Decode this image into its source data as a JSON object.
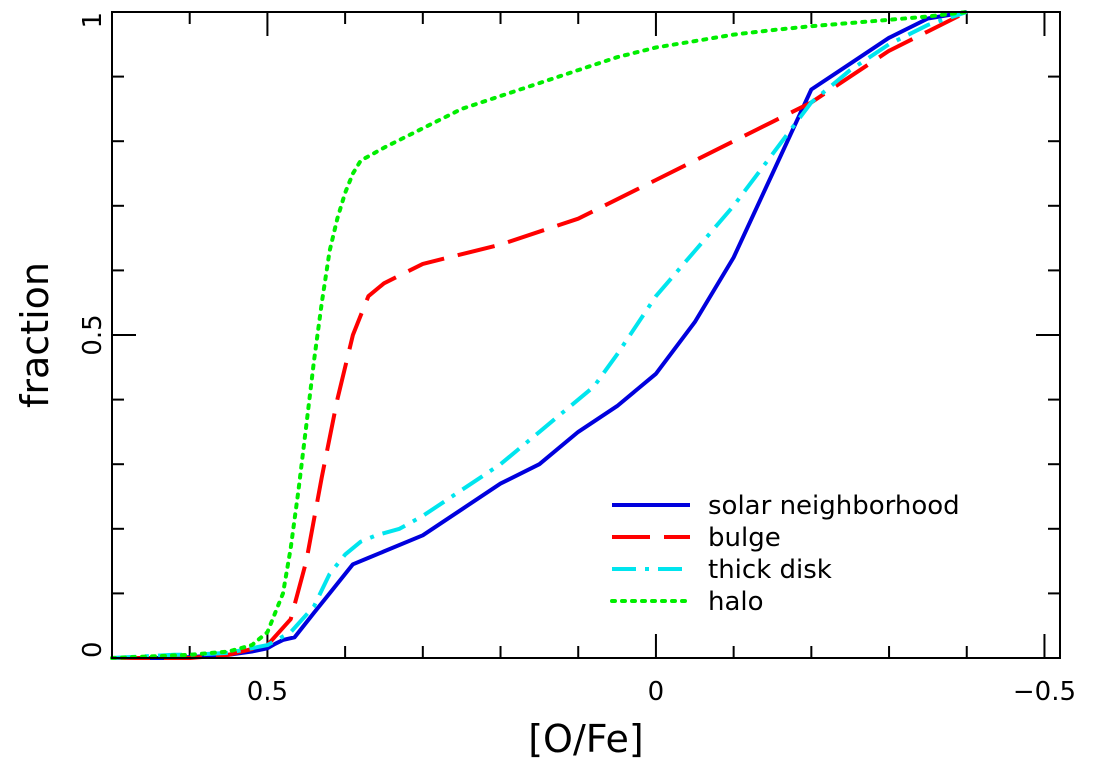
{
  "chart_data": {
    "type": "line",
    "xlabel": "[O/Fe]",
    "ylabel": "fraction",
    "xlim": [
      0.7,
      -0.52
    ],
    "ylim": [
      0,
      1
    ],
    "x_reversed": true,
    "grid": false,
    "legend_placement": "bottom-right",
    "x_ticks": [
      {
        "value": 0.5,
        "label": "0.5"
      },
      {
        "value": 0,
        "label": "0"
      },
      {
        "value": -0.5,
        "label": "−0.5"
      }
    ],
    "y_ticks": [
      {
        "value": 0,
        "label": "0"
      },
      {
        "value": 0.5,
        "label": "0.5"
      },
      {
        "value": 1,
        "label": "1"
      }
    ],
    "x_minor_step": 0.1,
    "y_minor_step": 0.1,
    "series": [
      {
        "name": "solar neighborhood",
        "color": "#0000dd",
        "dash": "solid",
        "x": [
          0.7,
          0.62,
          0.55,
          0.52,
          0.5,
          0.49,
          0.48,
          0.465,
          0.44,
          0.42,
          0.4,
          0.39,
          0.37,
          0.35,
          0.3,
          0.25,
          0.2,
          0.15,
          0.1,
          0.05,
          0.0,
          -0.05,
          -0.1,
          -0.15,
          -0.2,
          -0.25,
          -0.3,
          -0.35,
          -0.4
        ],
        "y": [
          0.0,
          0.0,
          0.005,
          0.01,
          0.015,
          0.022,
          0.028,
          0.032,
          0.07,
          0.1,
          0.13,
          0.145,
          0.155,
          0.165,
          0.19,
          0.23,
          0.27,
          0.3,
          0.35,
          0.39,
          0.44,
          0.52,
          0.62,
          0.75,
          0.88,
          0.92,
          0.96,
          0.99,
          1.0
        ]
      },
      {
        "name": "bulge",
        "color": "#ff0000",
        "dash": "long-dash",
        "x": [
          0.7,
          0.6,
          0.55,
          0.5,
          0.47,
          0.45,
          0.43,
          0.41,
          0.39,
          0.37,
          0.35,
          0.3,
          0.2,
          0.1,
          0.05,
          0.0,
          -0.05,
          -0.1,
          -0.15,
          -0.2,
          -0.25,
          -0.3,
          -0.35,
          -0.4
        ],
        "y": [
          0.0,
          0.0,
          0.005,
          0.02,
          0.06,
          0.15,
          0.28,
          0.4,
          0.5,
          0.56,
          0.58,
          0.61,
          0.64,
          0.68,
          0.71,
          0.74,
          0.77,
          0.8,
          0.83,
          0.86,
          0.9,
          0.94,
          0.97,
          1.0
        ]
      },
      {
        "name": "thick disk",
        "color": "#00e5ee",
        "dash": "dash-dot",
        "x": [
          0.7,
          0.62,
          0.6,
          0.55,
          0.5,
          0.47,
          0.44,
          0.42,
          0.4,
          0.38,
          0.36,
          0.33,
          0.3,
          0.25,
          0.2,
          0.15,
          0.12,
          0.08,
          0.05,
          0.0,
          -0.05,
          -0.1,
          -0.15,
          -0.2,
          -0.25,
          -0.3,
          -0.35,
          -0.4
        ],
        "y": [
          0.0,
          0.005,
          0.005,
          0.008,
          0.02,
          0.04,
          0.08,
          0.13,
          0.16,
          0.18,
          0.19,
          0.2,
          0.22,
          0.26,
          0.3,
          0.35,
          0.38,
          0.42,
          0.47,
          0.56,
          0.63,
          0.7,
          0.78,
          0.86,
          0.91,
          0.95,
          0.98,
          1.0
        ]
      },
      {
        "name": "halo",
        "color": "#00ee00",
        "dash": "dotted",
        "x": [
          0.7,
          0.6,
          0.55,
          0.52,
          0.5,
          0.48,
          0.47,
          0.46,
          0.45,
          0.44,
          0.43,
          0.42,
          0.41,
          0.4,
          0.39,
          0.38,
          0.35,
          0.3,
          0.25,
          0.2,
          0.15,
          0.1,
          0.05,
          0.0,
          -0.05,
          -0.1,
          -0.15,
          -0.2,
          -0.25,
          -0.3,
          -0.35,
          -0.4
        ],
        "y": [
          0.0,
          0.005,
          0.01,
          0.02,
          0.04,
          0.1,
          0.17,
          0.26,
          0.36,
          0.46,
          0.55,
          0.63,
          0.68,
          0.72,
          0.75,
          0.77,
          0.79,
          0.82,
          0.85,
          0.87,
          0.89,
          0.91,
          0.93,
          0.945,
          0.955,
          0.965,
          0.972,
          0.978,
          0.983,
          0.988,
          0.993,
          1.0
        ]
      }
    ]
  }
}
